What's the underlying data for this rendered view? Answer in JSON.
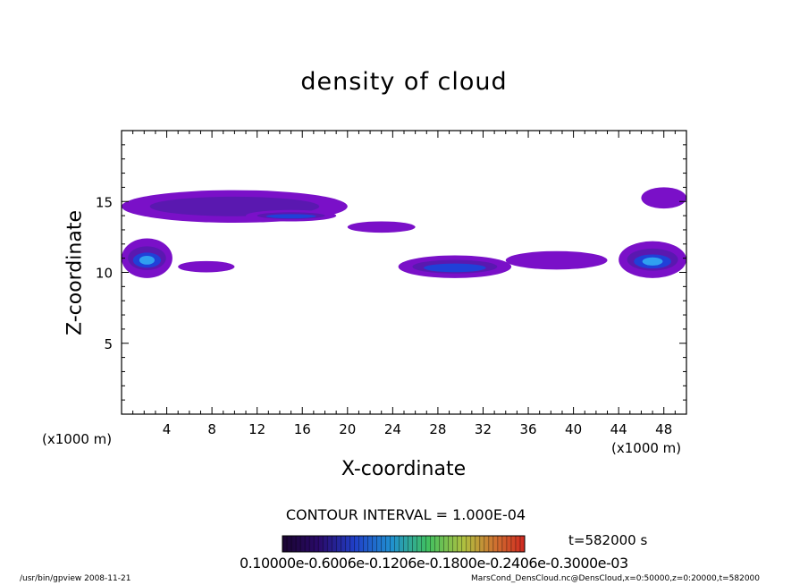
{
  "title": "density of cloud",
  "xlabel": "X-coordinate",
  "ylabel": "Z-coordinate",
  "x_unit": "(x1000 m)",
  "y_unit": "(x1000 m)",
  "contour_interval": "CONTOUR INTERVAL = 1.000E-04",
  "time_label": "t=582000 s",
  "colorbar_tick_text": "0.10000e-0.6006e-0.1206e-0.1800e-0.2406e-0.3000e-03",
  "footer_left": "/usr/bin/gpview   2008-11-21",
  "footer_right": "MarsCond_DensCloud.nc@DensCloud,x=0:50000,z=0:20000,t=582000",
  "colors": {
    "frame": "#000000",
    "low": "#7a10c8",
    "mid": "#5a18b0",
    "high": "#2040d8",
    "peak": "#30a0f0",
    "colorbar": [
      "#000000",
      "#2a0a5a",
      "#2020c0",
      "#2080e0",
      "#20c0a0",
      "#60d040",
      "#c0d030",
      "#e08030",
      "#e03020"
    ]
  },
  "chart_data": {
    "type": "heatmap",
    "title": "density of cloud",
    "xlabel": "X-coordinate",
    "ylabel": "Z-coordinate",
    "x_unit": "(x1000 m)",
    "xlim": [
      0,
      50
    ],
    "ylim": [
      0,
      20
    ],
    "xticks": [
      4,
      8,
      12,
      16,
      20,
      24,
      28,
      32,
      36,
      40,
      44,
      48
    ],
    "yticks": [
      5,
      10,
      15
    ],
    "contour_interval": 0.0001,
    "colorbar_range": [
      0.0001,
      0.0003
    ],
    "time_s": 582000,
    "cloud_regions": [
      {
        "name": "upper band west",
        "x": [
          0,
          20
        ],
        "z": [
          13.5,
          15.8
        ],
        "max_level": "mid"
      },
      {
        "name": "upper band east",
        "x": [
          20,
          26
        ],
        "z": [
          12.8,
          13.6
        ],
        "max_level": "low"
      },
      {
        "name": "core at x=16",
        "x": [
          11,
          19
        ],
        "z": [
          13.6,
          14.4
        ],
        "max_level": "high"
      },
      {
        "name": "lower west",
        "x": [
          0,
          4.5
        ],
        "z": [
          9.6,
          12.4
        ],
        "max_level": "peak"
      },
      {
        "name": "lower small west",
        "x": [
          5,
          10
        ],
        "z": [
          10.0,
          10.8
        ],
        "max_level": "low"
      },
      {
        "name": "lower middle",
        "x": [
          24.5,
          34.5
        ],
        "z": [
          9.6,
          11.2
        ],
        "max_level": "high"
      },
      {
        "name": "lower east",
        "x": [
          34,
          43
        ],
        "z": [
          10.2,
          11.5
        ],
        "max_level": "low"
      },
      {
        "name": "lower far east",
        "x": [
          44,
          50
        ],
        "z": [
          9.6,
          12.2
        ],
        "max_level": "peak"
      },
      {
        "name": "upper far east",
        "x": [
          46,
          50
        ],
        "z": [
          14.5,
          16.0
        ],
        "max_level": "low"
      }
    ]
  }
}
